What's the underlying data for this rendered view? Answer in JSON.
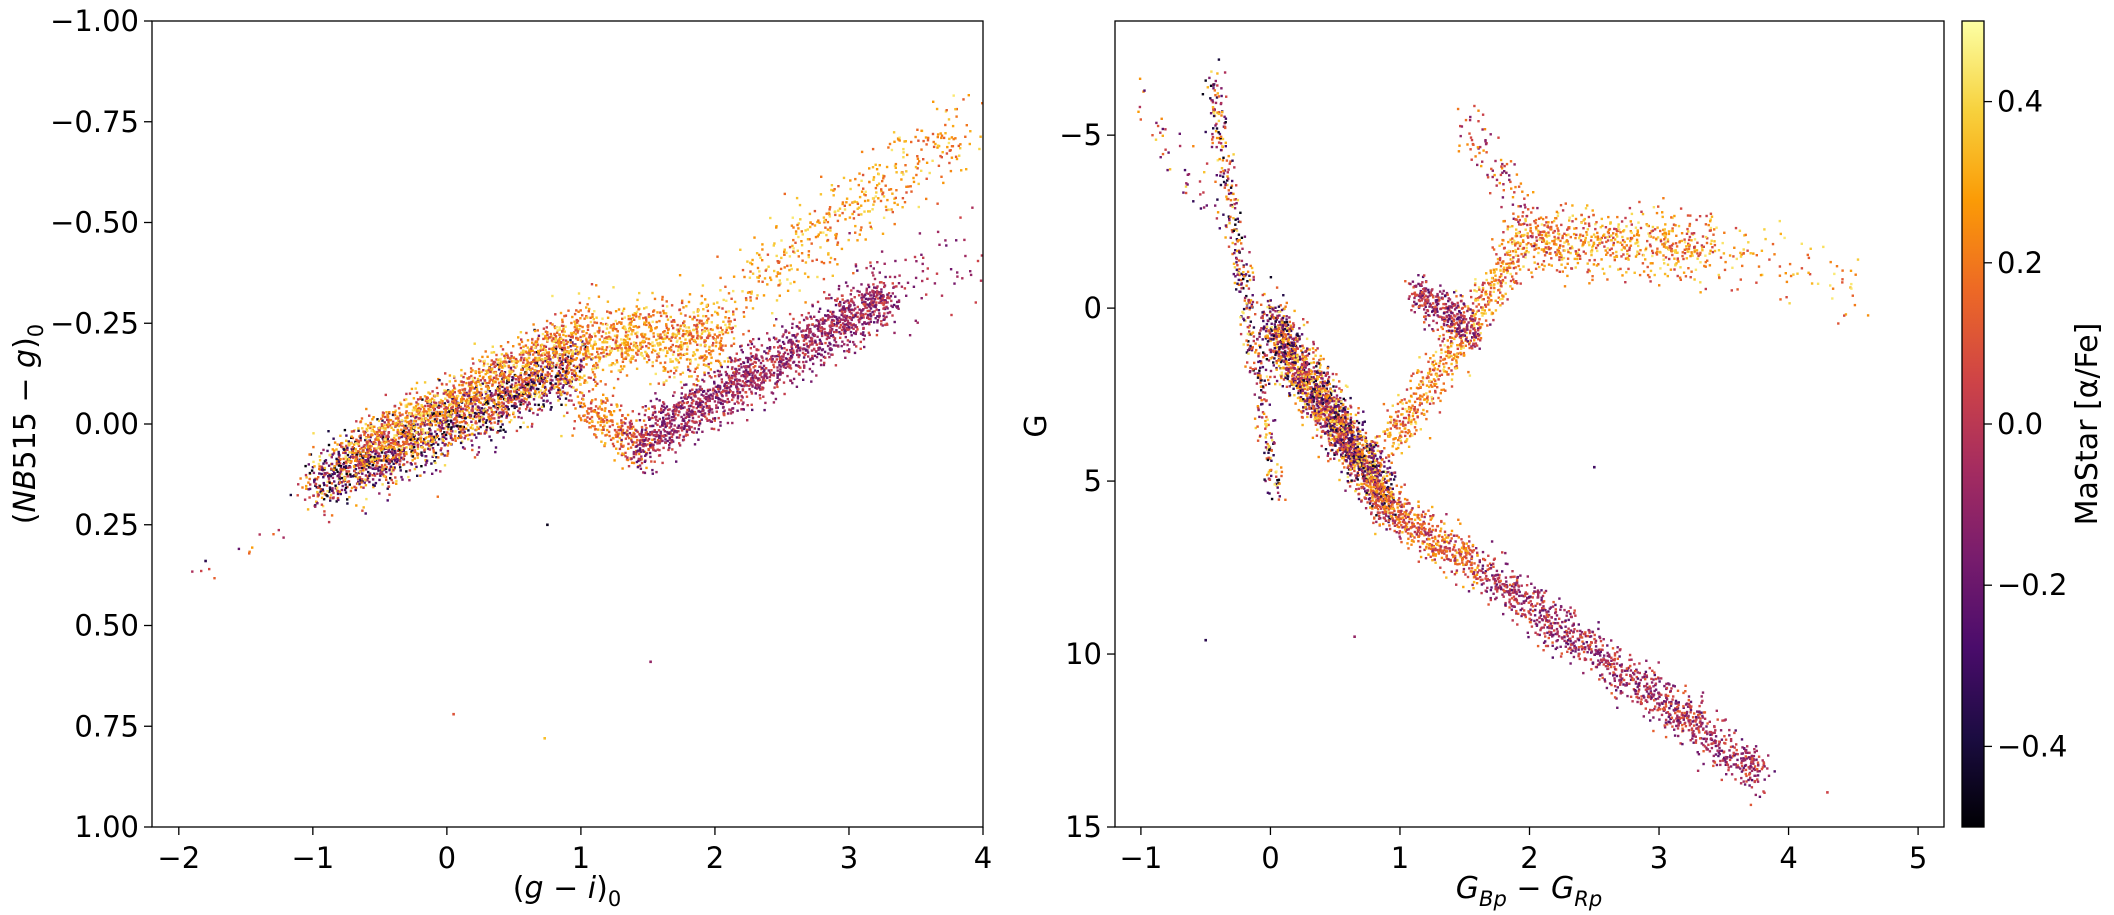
{
  "chart_data": [
    {
      "type": "scatter",
      "panel": "left",
      "xlabel": "(g − i)0",
      "ylabel": "(NB515 − g)0",
      "xlim": [
        -2.2,
        4.0
      ],
      "ylim": [
        1.0,
        -1.0
      ],
      "y_inverted": true,
      "xticks": [
        "−2",
        "−1",
        "0",
        "1",
        "2",
        "3",
        "4"
      ],
      "yticks": [
        "−1.00",
        "−0.75",
        "−0.50",
        "−0.25",
        "0.00",
        "0.25",
        "0.50",
        "0.75",
        "1.00"
      ],
      "color_by": "MaStar [α/Fe]",
      "grid": false,
      "point_groups": [
        {
          "x": [
            -1.0,
            1.0
          ],
          "y": [
            0.15,
            -0.15
          ],
          "spread": 0.04,
          "alpha_range": [
            -0.5,
            0.45
          ],
          "n": 2200
        },
        {
          "x": [
            -0.7,
            0.9
          ],
          "y": [
            0.07,
            -0.22
          ],
          "spread": 0.03,
          "alpha_range": [
            0.0,
            0.45
          ],
          "n": 900
        },
        {
          "x": [
            0.9,
            2.1
          ],
          "y": [
            -0.2,
            -0.22
          ],
          "spread": 0.05,
          "alpha_range": [
            0.05,
            0.45
          ],
          "n": 900
        },
        {
          "x": [
            2.1,
            3.9
          ],
          "y": [
            -0.3,
            -0.75
          ],
          "spread": 0.05,
          "alpha_range": [
            0.1,
            0.45
          ],
          "n": 450
        },
        {
          "x": [
            1.0,
            1.5
          ],
          "y": [
            -0.05,
            0.07
          ],
          "spread": 0.03,
          "alpha_range": [
            0.0,
            0.35
          ],
          "n": 250
        },
        {
          "x": [
            1.4,
            3.3
          ],
          "y": [
            0.05,
            -0.32
          ],
          "spread": 0.035,
          "alpha_range": [
            -0.25,
            0.1
          ],
          "n": 1700
        },
        {
          "x": [
            3.0,
            4.0
          ],
          "y": [
            -0.3,
            -0.4
          ],
          "spread": 0.06,
          "alpha_range": [
            -0.2,
            0.05
          ],
          "n": 80
        },
        {
          "x": [
            -2.0,
            -1.2
          ],
          "y": [
            0.4,
            0.25
          ],
          "spread": 0.02,
          "alpha_range": [
            -0.3,
            0.4
          ],
          "n": 12
        }
      ],
      "outliers": [
        {
          "x": 0.05,
          "y": 0.72,
          "a": 0.1
        },
        {
          "x": 0.73,
          "y": 0.78,
          "a": 0.35
        },
        {
          "x": 1.52,
          "y": 0.59,
          "a": -0.1
        },
        {
          "x": 0.75,
          "y": 0.25,
          "a": -0.45
        },
        {
          "x": -1.8,
          "y": 0.34,
          "a": -0.35
        }
      ]
    },
    {
      "type": "scatter",
      "panel": "right",
      "xlabel": "GBp − GRp",
      "ylabel": "G",
      "xlim": [
        -1.2,
        5.2
      ],
      "ylim": [
        15.0,
        -8.3
      ],
      "y_inverted": true,
      "xticks": [
        "−1",
        "0",
        "1",
        "2",
        "3",
        "4",
        "5"
      ],
      "yticks": [
        "−5",
        "0",
        "5",
        "10",
        "15"
      ],
      "color_by": "MaStar [α/Fe]",
      "grid": false,
      "point_groups": [
        {
          "x": [
            0.0,
            0.9
          ],
          "y": [
            0.5,
            5.5
          ],
          "spread": 0.45,
          "alpha_range": [
            -0.45,
            0.45
          ],
          "n": 2200
        },
        {
          "x": [
            0.8,
            1.6
          ],
          "y": [
            5.5,
            7.5
          ],
          "spread": 0.35,
          "alpha_range": [
            -0.1,
            0.35
          ],
          "n": 500
        },
        {
          "x": [
            1.6,
            3.8
          ],
          "y": [
            7.5,
            13.5
          ],
          "spread": 0.35,
          "alpha_range": [
            -0.25,
            0.15
          ],
          "n": 1200
        },
        {
          "x": [
            0.9,
            1.9
          ],
          "y": [
            4.0,
            -1.5
          ],
          "spread": 0.4,
          "alpha_range": [
            0.0,
            0.45
          ],
          "n": 600
        },
        {
          "x": [
            1.1,
            1.6
          ],
          "y": [
            -0.5,
            0.8
          ],
          "spread": 0.3,
          "alpha_range": [
            -0.3,
            0.15
          ],
          "n": 350
        },
        {
          "x": [
            1.8,
            3.4
          ],
          "y": [
            -2.0,
            -1.8
          ],
          "spread": 0.45,
          "alpha_range": [
            0.0,
            0.45
          ],
          "n": 700
        },
        {
          "x": [
            3.4,
            4.6
          ],
          "y": [
            -1.6,
            -0.6
          ],
          "spread": 0.6,
          "alpha_range": [
            0.05,
            0.45
          ],
          "n": 90
        },
        {
          "x": [
            -0.45,
            0.05
          ],
          "y": [
            -6.5,
            5.5
          ],
          "spread": 0.3,
          "alpha_range": [
            -0.5,
            0.45
          ],
          "n": 450
        },
        {
          "x": [
            1.5,
            2.1
          ],
          "y": [
            -5.5,
            -2.0
          ],
          "spread": 0.4,
          "alpha_range": [
            -0.2,
            0.3
          ],
          "n": 120
        },
        {
          "x": [
            -1.0,
            -0.3
          ],
          "y": [
            -6.0,
            -2.0
          ],
          "spread": 0.5,
          "alpha_range": [
            -0.4,
            0.4
          ],
          "n": 50
        }
      ],
      "outliers": [
        {
          "x": -0.5,
          "y": 9.6,
          "a": -0.35
        },
        {
          "x": 4.3,
          "y": 14.0,
          "a": 0.05
        },
        {
          "x": 0.65,
          "y": 9.5,
          "a": -0.1
        },
        {
          "x": 2.5,
          "y": 4.6,
          "a": -0.3
        }
      ]
    }
  ],
  "colorbar": {
    "label": "MaStar [α/Fe]",
    "range": [
      -0.5,
      0.5
    ],
    "ticks": [
      "0.4",
      "0.2",
      "0.0",
      "−0.2",
      "−0.4"
    ],
    "tick_values": [
      0.4,
      0.2,
      0.0,
      -0.2,
      -0.4
    ],
    "colormap": "inferno",
    "stops": [
      "#000004",
      "#1b0c41",
      "#4a0c6b",
      "#781c6d",
      "#a52c60",
      "#cf4446",
      "#ed6925",
      "#fb9b06",
      "#f7d13d",
      "#fcffa4"
    ]
  }
}
